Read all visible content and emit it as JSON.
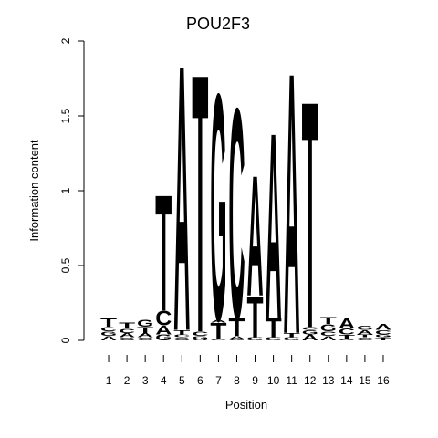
{
  "chart_data": {
    "type": "sequence-logo",
    "title": "POU2F3",
    "xlabel": "Position",
    "ylabel": "Information content",
    "ylim": [
      0,
      2
    ],
    "y_ticks": [
      0,
      0.5,
      1,
      1.5,
      2
    ],
    "y_tick_labels": [
      "0",
      "0.5",
      "1",
      "1.5",
      "2"
    ],
    "positions": [
      1,
      2,
      3,
      4,
      5,
      6,
      7,
      8,
      9,
      10,
      11,
      12,
      13,
      14,
      15,
      16
    ],
    "base_colors": {
      "A": "#00d000",
      "C": "#0000e0",
      "G": "#ffa500",
      "T": "#ff0000"
    },
    "columns": [
      [
        {
          "base": "A",
          "height": 0.03
        },
        {
          "base": "G",
          "height": 0.03
        },
        {
          "base": "C",
          "height": 0.03
        },
        {
          "base": "T",
          "height": 0.06
        }
      ],
      [
        {
          "base": "G",
          "height": 0.02
        },
        {
          "base": "A",
          "height": 0.03
        },
        {
          "base": "C",
          "height": 0.03
        },
        {
          "base": "T",
          "height": 0.04
        }
      ],
      [
        {
          "base": "C",
          "height": 0.02
        },
        {
          "base": "A",
          "height": 0.03
        },
        {
          "base": "T",
          "height": 0.04
        },
        {
          "base": "G",
          "height": 0.05
        }
      ],
      [
        {
          "base": "G",
          "height": 0.04
        },
        {
          "base": "A",
          "height": 0.06
        },
        {
          "base": "C",
          "height": 0.1
        },
        {
          "base": "T",
          "height": 0.8
        }
      ],
      [
        {
          "base": "G",
          "height": 0.02
        },
        {
          "base": "C",
          "height": 0.02
        },
        {
          "base": "T",
          "height": 0.03
        },
        {
          "base": "A",
          "height": 1.83
        }
      ],
      [
        {
          "base": "A",
          "height": 0.01
        },
        {
          "base": "G",
          "height": 0.02
        },
        {
          "base": "C",
          "height": 0.03
        },
        {
          "base": "T",
          "height": 1.78
        }
      ],
      [
        {
          "base": "C",
          "height": 0.01
        },
        {
          "base": "T",
          "height": 0.11
        },
        {
          "base": "A",
          "height": 0.02
        },
        {
          "base": "G",
          "height": 1.56
        }
      ],
      [
        {
          "base": "G",
          "height": 0.01
        },
        {
          "base": "A",
          "height": 0.02
        },
        {
          "base": "T",
          "height": 0.12
        },
        {
          "base": "C",
          "height": 1.45
        }
      ],
      [
        {
          "base": "G",
          "height": 0.01
        },
        {
          "base": "C",
          "height": 0.01
        },
        {
          "base": "T",
          "height": 0.28
        },
        {
          "base": "A",
          "height": 0.83
        }
      ],
      [
        {
          "base": "G",
          "height": 0.01
        },
        {
          "base": "C",
          "height": 0.01
        },
        {
          "base": "T",
          "height": 0.13
        },
        {
          "base": "A",
          "height": 1.28
        }
      ],
      [
        {
          "base": "G",
          "height": 0.01
        },
        {
          "base": "C",
          "height": 0.01
        },
        {
          "base": "T",
          "height": 0.03
        },
        {
          "base": "A",
          "height": 1.8
        }
      ],
      [
        {
          "base": "A",
          "height": 0.04
        },
        {
          "base": "G",
          "height": 0.03
        },
        {
          "base": "C",
          "height": 0.02
        },
        {
          "base": "T",
          "height": 1.56
        }
      ],
      [
        {
          "base": "A",
          "height": 0.03
        },
        {
          "base": "C",
          "height": 0.03
        },
        {
          "base": "G",
          "height": 0.05
        },
        {
          "base": "T",
          "height": 0.05
        }
      ],
      [
        {
          "base": "G",
          "height": 0.01
        },
        {
          "base": "T",
          "height": 0.03
        },
        {
          "base": "C",
          "height": 0.04
        },
        {
          "base": "A",
          "height": 0.07
        }
      ],
      [
        {
          "base": "C",
          "height": 0.02
        },
        {
          "base": "T",
          "height": 0.02
        },
        {
          "base": "A",
          "height": 0.03
        },
        {
          "base": "G",
          "height": 0.03
        }
      ],
      [
        {
          "base": "T",
          "height": 0.02
        },
        {
          "base": "G",
          "height": 0.02
        },
        {
          "base": "C",
          "height": 0.03
        },
        {
          "base": "A",
          "height": 0.04
        }
      ]
    ]
  }
}
